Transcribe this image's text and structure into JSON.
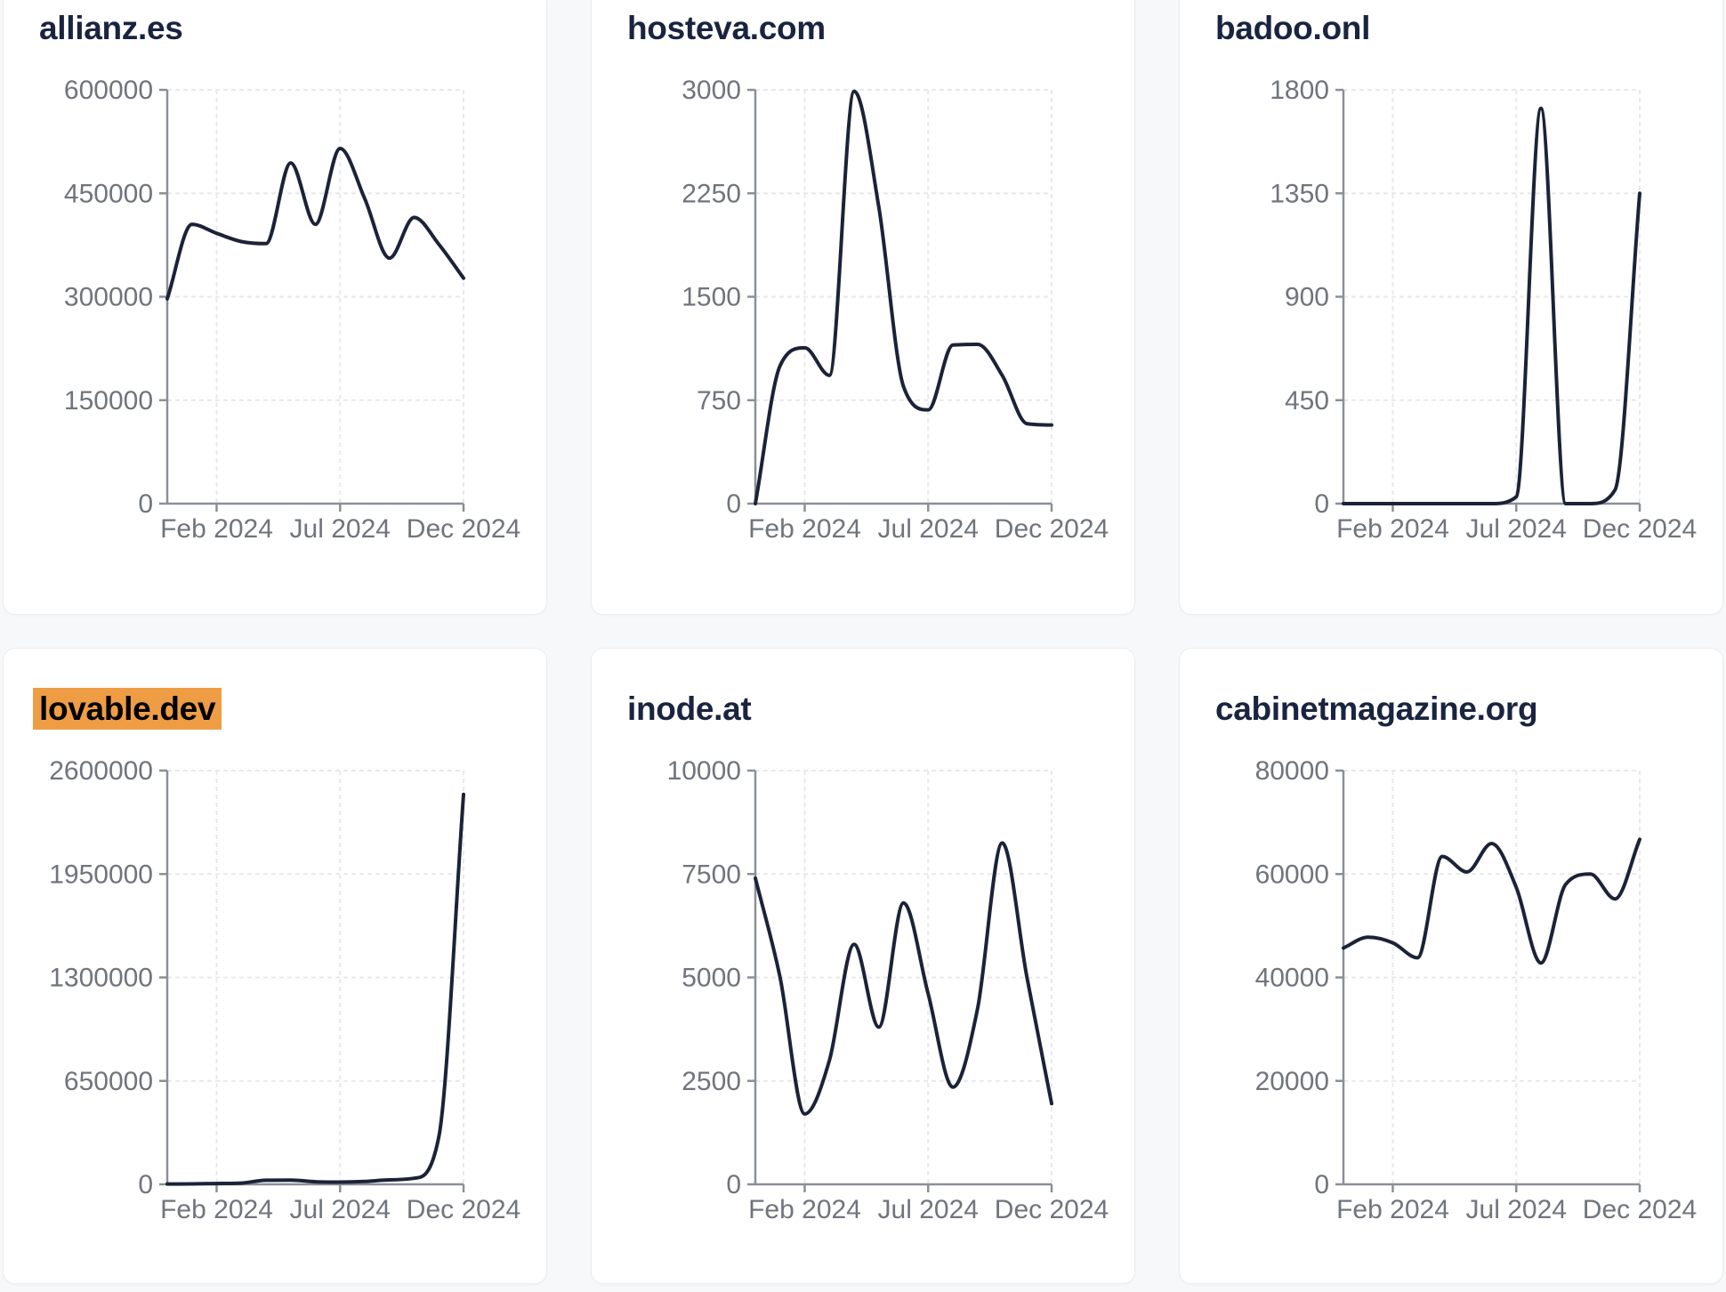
{
  "colors": {
    "page_background": "#f7f8f9",
    "card_background": "#ffffff",
    "card_border": "#ebedf0",
    "series_line": "#1c2237",
    "title_text": "#1a2440",
    "tick_label": "#70747c",
    "axis": "#8b9097",
    "gridline": "#e8e9ec",
    "highlight_background": "#ee9d45",
    "highlight_text": "#000000"
  },
  "chart_data": [
    {
      "type": "line",
      "title": "allianz.es",
      "highlighted": false,
      "x_months": [
        "Dec 2023",
        "Jan 2024",
        "Feb 2024",
        "Mar 2024",
        "Apr 2024",
        "May 2024",
        "Jun 2024",
        "Jul 2024",
        "Aug 2024",
        "Sep 2024",
        "Oct 2024",
        "Nov 2024",
        "Dec 2024"
      ],
      "values": [
        297000,
        405000,
        392000,
        380000,
        377000,
        494000,
        405000,
        515000,
        442000,
        356000,
        415000,
        376000,
        327000
      ],
      "ylim": [
        0,
        600000
      ],
      "y_ticks": [
        0,
        150000,
        300000,
        450000,
        600000
      ],
      "x_tick_labels": [
        "Feb 2024",
        "Jul 2024",
        "Dec 2024"
      ],
      "x_tick_indices": [
        2,
        7,
        12
      ],
      "grid": true,
      "legend": "none"
    },
    {
      "type": "line",
      "title": "hosteva.com",
      "highlighted": false,
      "x_months": [
        "Dec 2023",
        "Jan 2024",
        "Feb 2024",
        "Mar 2024",
        "Apr 2024",
        "May 2024",
        "Jun 2024",
        "Jul 2024",
        "Aug 2024",
        "Sep 2024",
        "Oct 2024",
        "Nov 2024",
        "Dec 2024"
      ],
      "values": [
        0,
        1000,
        1130,
        930,
        2990,
        2150,
        850,
        680,
        1150,
        1155,
        930,
        580,
        570
      ],
      "ylim": [
        0,
        3000
      ],
      "y_ticks": [
        0,
        750,
        1500,
        2250,
        3000
      ],
      "x_tick_labels": [
        "Feb 2024",
        "Jul 2024",
        "Dec 2024"
      ],
      "x_tick_indices": [
        2,
        7,
        12
      ],
      "grid": true,
      "legend": "none"
    },
    {
      "type": "line",
      "title": "badoo.onl",
      "highlighted": false,
      "x_months": [
        "Dec 2023",
        "Jan 2024",
        "Feb 2024",
        "Mar 2024",
        "Apr 2024",
        "May 2024",
        "Jun 2024",
        "Jul 2024",
        "Aug 2024",
        "Sep 2024",
        "Oct 2024",
        "Nov 2024",
        "Dec 2024"
      ],
      "values": [
        0,
        0,
        0,
        0,
        0,
        0,
        0,
        30,
        1720,
        0,
        0,
        60,
        1350
      ],
      "ylim": [
        0,
        1800
      ],
      "y_ticks": [
        0,
        450,
        900,
        1350,
        1800
      ],
      "x_tick_labels": [
        "Feb 2024",
        "Jul 2024",
        "Dec 2024"
      ],
      "x_tick_indices": [
        2,
        7,
        12
      ],
      "grid": true,
      "legend": "none"
    },
    {
      "type": "line",
      "title": "lovable.dev",
      "highlighted": true,
      "x_months": [
        "Dec 2023",
        "Jan 2024",
        "Feb 2024",
        "Mar 2024",
        "Apr 2024",
        "May 2024",
        "Jun 2024",
        "Jul 2024",
        "Aug 2024",
        "Sep 2024",
        "Oct 2024",
        "Nov 2024",
        "Dec 2024"
      ],
      "values": [
        2000,
        3000,
        5000,
        8000,
        26000,
        27000,
        16000,
        14000,
        18000,
        28000,
        38000,
        300000,
        2450000
      ],
      "ylim": [
        0,
        2600000
      ],
      "y_ticks": [
        0,
        650000,
        1300000,
        1950000,
        2600000
      ],
      "x_tick_labels": [
        "Feb 2024",
        "Jul 2024",
        "Dec 2024"
      ],
      "x_tick_indices": [
        2,
        7,
        12
      ],
      "grid": true,
      "legend": "none"
    },
    {
      "type": "line",
      "title": "inode.at",
      "highlighted": false,
      "x_months": [
        "Dec 2023",
        "Jan 2024",
        "Feb 2024",
        "Mar 2024",
        "Apr 2024",
        "May 2024",
        "Jun 2024",
        "Jul 2024",
        "Aug 2024",
        "Sep 2024",
        "Oct 2024",
        "Nov 2024",
        "Dec 2024"
      ],
      "values": [
        7400,
        5000,
        1700,
        3000,
        5800,
        3800,
        6800,
        4600,
        2350,
        4250,
        8250,
        5000,
        1950
      ],
      "ylim": [
        0,
        10000
      ],
      "y_ticks": [
        0,
        2500,
        5000,
        7500,
        10000
      ],
      "x_tick_labels": [
        "Feb 2024",
        "Jul 2024",
        "Dec 2024"
      ],
      "x_tick_indices": [
        2,
        7,
        12
      ],
      "grid": true,
      "legend": "none"
    },
    {
      "type": "line",
      "title": "cabinetmagazine.org",
      "highlighted": false,
      "x_months": [
        "Dec 2023",
        "Jan 2024",
        "Feb 2024",
        "Mar 2024",
        "Apr 2024",
        "May 2024",
        "Jun 2024",
        "Jul 2024",
        "Aug 2024",
        "Sep 2024",
        "Oct 2024",
        "Nov 2024",
        "Dec 2024"
      ],
      "values": [
        45700,
        47800,
        46700,
        43800,
        63400,
        60400,
        65900,
        57400,
        42800,
        58000,
        60000,
        55200,
        66700
      ],
      "ylim": [
        0,
        80000
      ],
      "y_ticks": [
        0,
        20000,
        40000,
        60000,
        80000
      ],
      "x_tick_labels": [
        "Feb 2024",
        "Jul 2024",
        "Dec 2024"
      ],
      "x_tick_indices": [
        2,
        7,
        12
      ],
      "grid": true,
      "legend": "none"
    }
  ]
}
